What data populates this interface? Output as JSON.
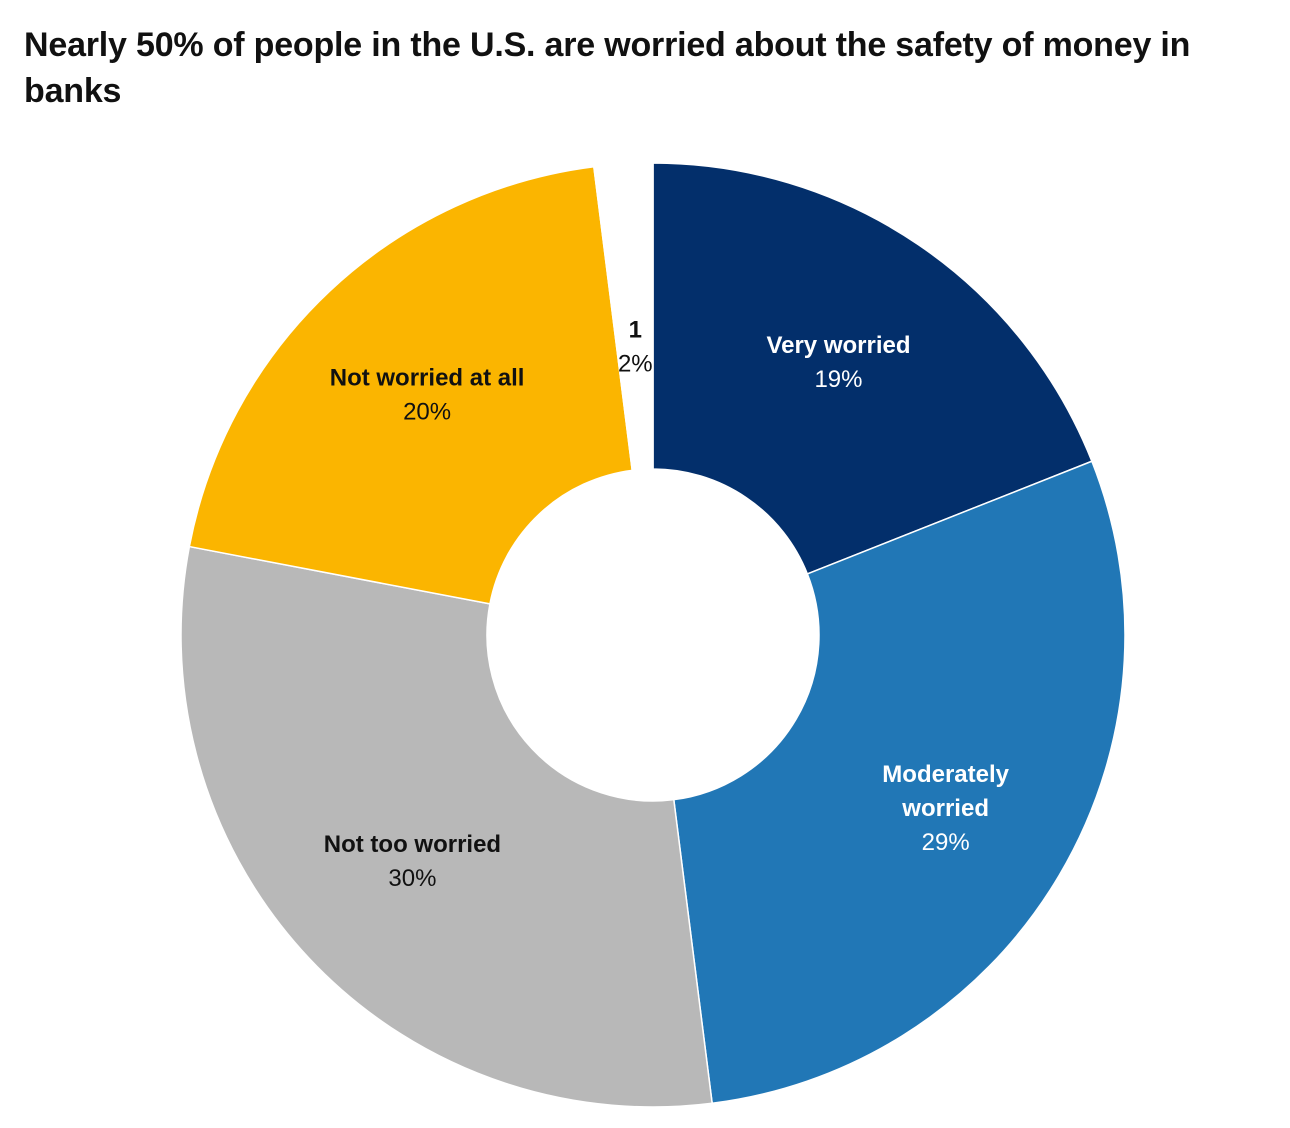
{
  "chart_data": {
    "type": "pie",
    "title": "Nearly 50% of people in the U.S. are worried about the safety of money in banks",
    "unit": "%",
    "slices": [
      {
        "label": "Very worried",
        "value": 19,
        "color": "#032f6b",
        "text_color": "#ffffff"
      },
      {
        "label": "Moderately worried",
        "value": 29,
        "color": "#2177b6",
        "text_color": "#ffffff"
      },
      {
        "label": "Not too worried",
        "value": 30,
        "color": "#b8b8b8",
        "text_color": "#111111"
      },
      {
        "label": "Not worried at all",
        "value": 20,
        "color": "#fbb500",
        "text_color": "#111111"
      },
      {
        "label": "1",
        "value": 2,
        "color": "#ffffff",
        "text_color": "#111111"
      }
    ],
    "legend": "none",
    "data_labels": "inside"
  }
}
